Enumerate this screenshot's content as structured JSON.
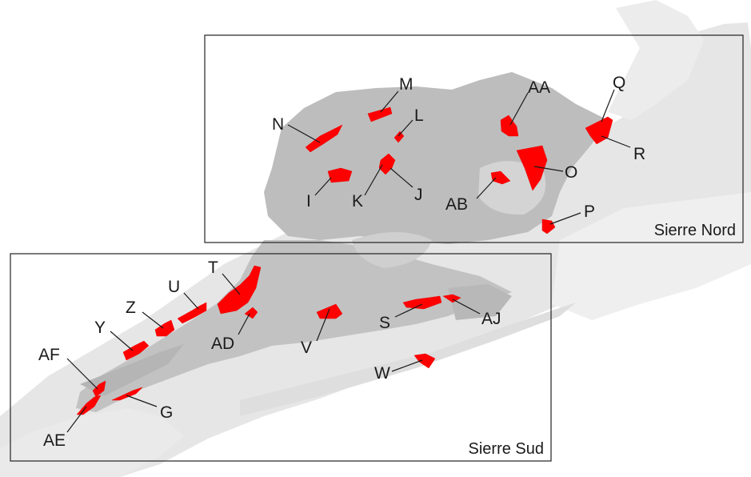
{
  "colors": {
    "background": "#ffffff",
    "valley_floor": "#e6e6e6",
    "valley_light": "#efefef",
    "urban_blocks": "#b9b9b9",
    "urban_mid": "#c9c9c9",
    "site": "#ff0000",
    "frame_border": "#222222",
    "text": "#1a1a1a"
  },
  "frames": [
    {
      "id": "nord",
      "title": "Sierre Nord"
    },
    {
      "id": "sud",
      "title": "Sierre Sud"
    }
  ],
  "sites": [
    {
      "label": "M"
    },
    {
      "label": "N"
    },
    {
      "label": "L"
    },
    {
      "label": "AA"
    },
    {
      "label": "Q"
    },
    {
      "label": "R"
    },
    {
      "label": "O"
    },
    {
      "label": "I"
    },
    {
      "label": "K"
    },
    {
      "label": "J"
    },
    {
      "label": "AB"
    },
    {
      "label": "P"
    },
    {
      "label": "T"
    },
    {
      "label": "U"
    },
    {
      "label": "Z"
    },
    {
      "label": "Y"
    },
    {
      "label": "AF"
    },
    {
      "label": "AD"
    },
    {
      "label": "V"
    },
    {
      "label": "S"
    },
    {
      "label": "AJ"
    },
    {
      "label": "W"
    },
    {
      "label": "G"
    },
    {
      "label": "AE"
    }
  ]
}
